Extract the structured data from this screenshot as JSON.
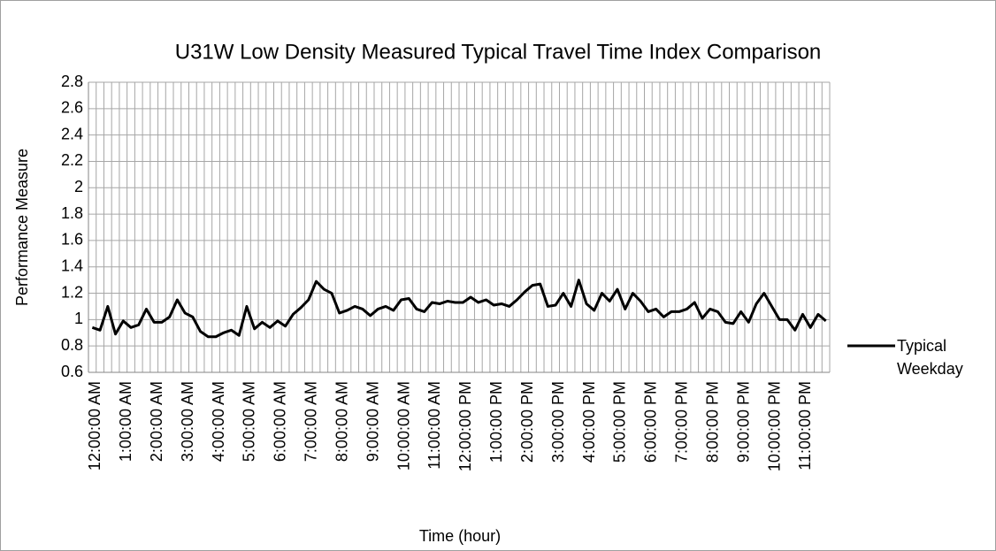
{
  "chart_data": {
    "type": "line",
    "title": "U31W Low Density Measured Typical Travel Time Index Comparison",
    "x_label": "Time (hour)",
    "y_label": "Performance Measure",
    "categories": [
      "12:00:00 AM",
      null,
      null,
      null,
      "1:00:00 AM",
      null,
      null,
      null,
      "2:00:00 AM",
      null,
      null,
      null,
      "3:00:00 AM",
      null,
      null,
      null,
      "4:00:00 AM",
      null,
      null,
      null,
      "5:00:00 AM",
      null,
      null,
      null,
      "6:00:00 AM",
      null,
      null,
      null,
      "7:00:00 AM",
      null,
      null,
      null,
      "8:00:00 AM",
      null,
      null,
      null,
      "9:00:00 AM",
      null,
      null,
      null,
      "10:00:00 AM",
      null,
      null,
      null,
      "11:00:00 AM",
      null,
      null,
      null,
      "12:00:00 PM",
      null,
      null,
      null,
      "1:00:00 PM",
      null,
      null,
      null,
      "2:00:00 PM",
      null,
      null,
      null,
      "3:00:00 PM",
      null,
      null,
      null,
      "4:00:00 PM",
      null,
      null,
      null,
      "5:00:00 PM",
      null,
      null,
      null,
      "6:00:00 PM",
      null,
      null,
      null,
      "7:00:00 PM",
      null,
      null,
      null,
      "8:00:00 PM",
      null,
      null,
      null,
      "9:00:00 PM",
      null,
      null,
      null,
      "10:00:00 PM",
      null,
      null,
      null,
      "11:00:00 PM",
      null,
      null,
      null
    ],
    "series": [
      {
        "name": "Typical Weekday",
        "color": "#000000",
        "values": [
          0.94,
          0.92,
          1.1,
          0.89,
          0.99,
          0.94,
          0.96,
          1.08,
          0.98,
          0.98,
          1.02,
          1.15,
          1.05,
          1.02,
          0.91,
          0.87,
          0.87,
          0.9,
          0.92,
          0.88,
          1.1,
          0.93,
          0.98,
          0.94,
          0.99,
          0.95,
          1.04,
          1.09,
          1.15,
          1.29,
          1.23,
          1.2,
          1.05,
          1.07,
          1.1,
          1.08,
          1.03,
          1.08,
          1.1,
          1.07,
          1.15,
          1.16,
          1.08,
          1.06,
          1.13,
          1.12,
          1.14,
          1.13,
          1.13,
          1.17,
          1.13,
          1.15,
          1.11,
          1.12,
          1.1,
          1.15,
          1.21,
          1.26,
          1.27,
          1.1,
          1.11,
          1.2,
          1.1,
          1.3,
          1.12,
          1.07,
          1.2,
          1.14,
          1.23,
          1.08,
          1.2,
          1.14,
          1.06,
          1.08,
          1.02,
          1.06,
          1.06,
          1.08,
          1.13,
          1.01,
          1.08,
          1.06,
          0.98,
          0.97,
          1.06,
          0.98,
          1.12,
          1.2,
          1.1,
          1.0,
          1.0,
          0.92,
          1.04,
          0.94,
          1.04,
          0.99
        ]
      }
    ],
    "ylim": [
      0.6,
      2.8
    ],
    "yticks": [
      0.6,
      0.8,
      1,
      1.2,
      1.4,
      1.6,
      1.8,
      2,
      2.2,
      2.4,
      2.6,
      2.8
    ],
    "grid": true,
    "legend": "right"
  }
}
